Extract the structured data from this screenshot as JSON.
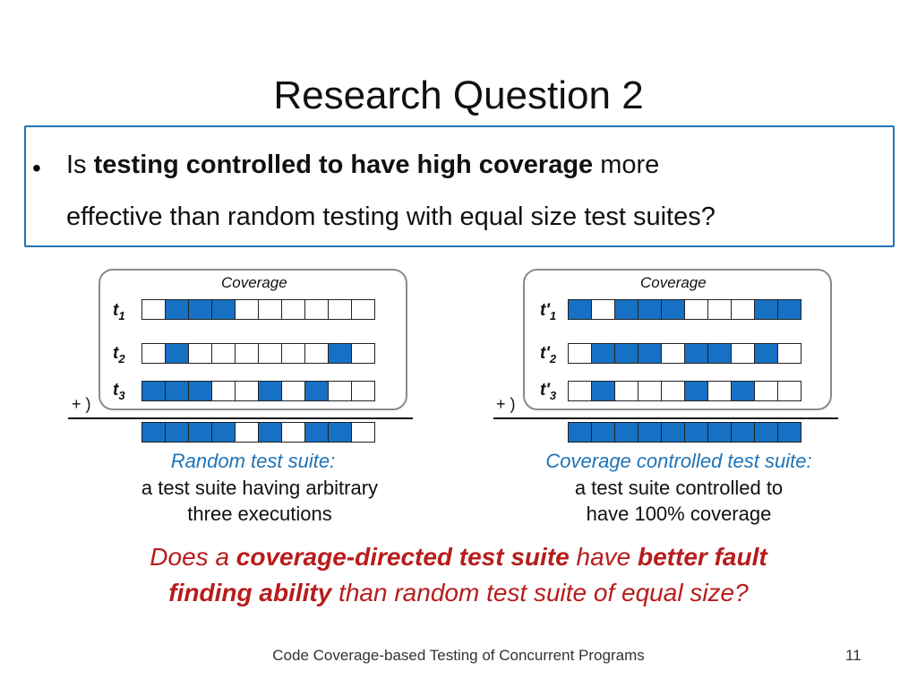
{
  "slide": {
    "title": "Research Question 2",
    "bullet_symbol": "•",
    "bullet": {
      "line1_pre": "Is ",
      "line1_bold": "testing controlled to have high coverage",
      "line1_post": " more",
      "line2": "effective than random testing with equal size test suites?"
    },
    "left_diagram": {
      "coverage_label": "Coverage",
      "plus_label": "+ )",
      "rows": [
        {
          "name": "t",
          "sub": "1",
          "cells": [
            0,
            1,
            1,
            1,
            0,
            0,
            0,
            0,
            0,
            0
          ]
        },
        {
          "name": "t",
          "sub": "2",
          "cells": [
            0,
            1,
            0,
            0,
            0,
            0,
            0,
            0,
            1,
            0
          ]
        },
        {
          "name": "t",
          "sub": "3",
          "cells": [
            1,
            1,
            1,
            0,
            0,
            1,
            0,
            1,
            0,
            0
          ]
        }
      ],
      "sum_cells": [
        1,
        1,
        1,
        1,
        0,
        1,
        0,
        1,
        1,
        0
      ],
      "suite_name": "Random test suite:",
      "desc_line1": "a test suite having arbitrary",
      "desc_line2": "three executions"
    },
    "right_diagram": {
      "coverage_label": "Coverage",
      "plus_label": "+ )",
      "rows": [
        {
          "name": "t'",
          "sub": "1",
          "cells": [
            1,
            0,
            1,
            1,
            1,
            0,
            0,
            0,
            1,
            1
          ]
        },
        {
          "name": "t'",
          "sub": "2",
          "cells": [
            0,
            1,
            1,
            1,
            0,
            1,
            1,
            0,
            1,
            0
          ]
        },
        {
          "name": "t'",
          "sub": "3",
          "cells": [
            0,
            1,
            0,
            0,
            0,
            1,
            0,
            1,
            0,
            0
          ]
        }
      ],
      "sum_cells": [
        1,
        1,
        1,
        1,
        1,
        1,
        1,
        1,
        1,
        1
      ],
      "suite_name": "Coverage controlled test suite:",
      "desc_line1": "a test suite controlled to",
      "desc_line2": "have 100% coverage"
    },
    "question": {
      "p1": "Does a ",
      "b1": "coverage-directed test suite",
      "p2": " have ",
      "b2": "better fault",
      "b3": "finding ability",
      "p3": " than random test suite of equal size?"
    },
    "footer": "Code Coverage-based Testing of Concurrent Programs",
    "page_number": "11"
  }
}
